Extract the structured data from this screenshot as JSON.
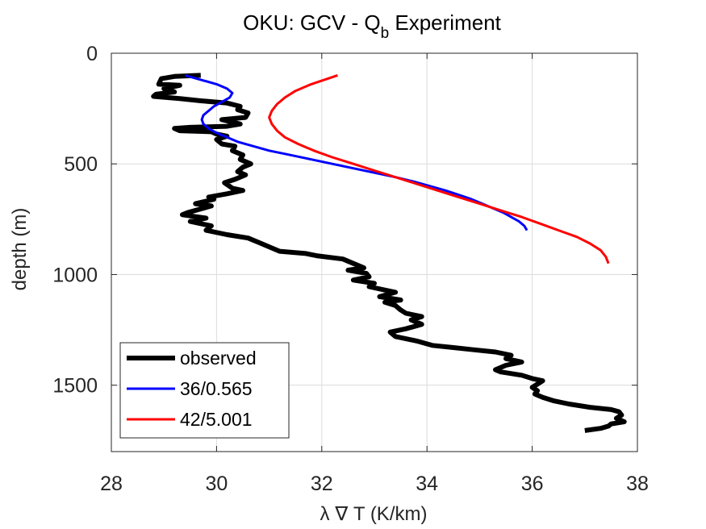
{
  "chart_data": {
    "type": "line",
    "title_main": "OKU: GCV - Q",
    "title_sub": "b",
    "title_end": " Experiment",
    "xlabel": "λ ∇ T (K/km)",
    "ylabel": "depth (m)",
    "xlim": [
      28,
      38
    ],
    "ylim": [
      0,
      1800
    ],
    "y_reversed": true,
    "grid": true,
    "legend_position": "bottom-left",
    "x_ticks": [
      "28",
      "30",
      "32",
      "34",
      "36",
      "38"
    ],
    "y_ticks": [
      "0",
      "500",
      "1000",
      "1500"
    ],
    "series": [
      {
        "name": "observed",
        "color": "#000000",
        "points": [
          [
            29.7,
            100
          ],
          [
            29.2,
            105
          ],
          [
            28.95,
            115
          ],
          [
            28.9,
            140
          ],
          [
            29.3,
            145
          ],
          [
            29.0,
            160
          ],
          [
            29.2,
            175
          ],
          [
            28.85,
            185
          ],
          [
            28.8,
            195
          ],
          [
            29.3,
            205
          ],
          [
            29.7,
            215
          ],
          [
            30.2,
            225
          ],
          [
            30.45,
            240
          ],
          [
            30.4,
            255
          ],
          [
            30.6,
            270
          ],
          [
            30.55,
            290
          ],
          [
            30.1,
            300
          ],
          [
            30.45,
            320
          ],
          [
            30.2,
            330
          ],
          [
            29.5,
            335
          ],
          [
            29.2,
            340
          ],
          [
            29.3,
            350
          ],
          [
            29.9,
            355
          ],
          [
            30.0,
            365
          ],
          [
            30.2,
            375
          ],
          [
            30.0,
            390
          ],
          [
            30.1,
            410
          ],
          [
            30.35,
            420
          ],
          [
            30.3,
            440
          ],
          [
            30.5,
            460
          ],
          [
            30.45,
            480
          ],
          [
            30.65,
            500
          ],
          [
            30.5,
            515
          ],
          [
            30.4,
            535
          ],
          [
            30.55,
            550
          ],
          [
            30.35,
            570
          ],
          [
            30.15,
            585
          ],
          [
            30.3,
            610
          ],
          [
            30.5,
            620
          ],
          [
            30.2,
            635
          ],
          [
            29.85,
            650
          ],
          [
            29.95,
            660
          ],
          [
            29.6,
            680
          ],
          [
            29.9,
            690
          ],
          [
            29.45,
            720
          ],
          [
            29.35,
            730
          ],
          [
            29.8,
            745
          ],
          [
            29.5,
            760
          ],
          [
            29.9,
            780
          ],
          [
            29.8,
            800
          ],
          [
            30.2,
            820
          ],
          [
            30.6,
            835
          ],
          [
            30.8,
            855
          ],
          [
            31.0,
            875
          ],
          [
            31.2,
            895
          ],
          [
            31.7,
            905
          ],
          [
            31.9,
            915
          ],
          [
            32.4,
            930
          ],
          [
            32.6,
            950
          ],
          [
            32.8,
            970
          ],
          [
            32.5,
            980
          ],
          [
            32.85,
            995
          ],
          [
            32.9,
            1010
          ],
          [
            32.6,
            1025
          ],
          [
            33.0,
            1040
          ],
          [
            32.9,
            1055
          ],
          [
            33.2,
            1070
          ],
          [
            33.4,
            1080
          ],
          [
            33.1,
            1100
          ],
          [
            33.5,
            1115
          ],
          [
            33.2,
            1125
          ],
          [
            33.4,
            1140
          ],
          [
            33.5,
            1160
          ],
          [
            33.6,
            1175
          ],
          [
            33.9,
            1190
          ],
          [
            33.7,
            1205
          ],
          [
            33.9,
            1225
          ],
          [
            33.6,
            1245
          ],
          [
            33.3,
            1260
          ],
          [
            33.4,
            1280
          ],
          [
            33.8,
            1300
          ],
          [
            34.1,
            1320
          ],
          [
            34.5,
            1330
          ],
          [
            34.9,
            1340
          ],
          [
            35.3,
            1350
          ],
          [
            35.6,
            1365
          ],
          [
            35.5,
            1380
          ],
          [
            35.8,
            1395
          ],
          [
            35.5,
            1410
          ],
          [
            35.3,
            1430
          ],
          [
            35.4,
            1440
          ],
          [
            35.8,
            1455
          ],
          [
            36.0,
            1470
          ],
          [
            36.2,
            1480
          ],
          [
            36.1,
            1495
          ],
          [
            36.0,
            1510
          ],
          [
            36.1,
            1525
          ],
          [
            36.05,
            1540
          ],
          [
            36.2,
            1555
          ],
          [
            36.4,
            1570
          ],
          [
            36.7,
            1585
          ],
          [
            37.1,
            1600
          ],
          [
            37.5,
            1610
          ],
          [
            37.65,
            1620
          ],
          [
            37.7,
            1635
          ],
          [
            37.6,
            1650
          ],
          [
            37.75,
            1665
          ],
          [
            37.5,
            1675
          ],
          [
            37.45,
            1685
          ],
          [
            37.3,
            1695
          ],
          [
            37.0,
            1705
          ]
        ]
      },
      {
        "name": "36/0.565",
        "color": "#0000ff",
        "points": [
          [
            29.4,
            100
          ],
          [
            29.7,
            120
          ],
          [
            30.0,
            140
          ],
          [
            30.2,
            160
          ],
          [
            30.3,
            180
          ],
          [
            30.25,
            200
          ],
          [
            30.1,
            220
          ],
          [
            29.95,
            240
          ],
          [
            29.85,
            260
          ],
          [
            29.75,
            280
          ],
          [
            29.72,
            300
          ],
          [
            29.75,
            320
          ],
          [
            29.85,
            340
          ],
          [
            30.0,
            360
          ],
          [
            30.2,
            380
          ],
          [
            30.4,
            400
          ],
          [
            30.7,
            420
          ],
          [
            31.0,
            440
          ],
          [
            31.4,
            460
          ],
          [
            31.8,
            480
          ],
          [
            32.2,
            500
          ],
          [
            32.6,
            520
          ],
          [
            33.0,
            540
          ],
          [
            33.4,
            560
          ],
          [
            33.75,
            580
          ],
          [
            34.05,
            600
          ],
          [
            34.35,
            620
          ],
          [
            34.6,
            640
          ],
          [
            34.85,
            660
          ],
          [
            35.05,
            680
          ],
          [
            35.25,
            700
          ],
          [
            35.45,
            720
          ],
          [
            35.6,
            740
          ],
          [
            35.75,
            760
          ],
          [
            35.85,
            780
          ],
          [
            35.9,
            800
          ]
        ]
      },
      {
        "name": "42/5.001",
        "color": "#ff0000",
        "points": [
          [
            32.3,
            100
          ],
          [
            31.8,
            140
          ],
          [
            31.5,
            170
          ],
          [
            31.3,
            200
          ],
          [
            31.15,
            230
          ],
          [
            31.05,
            260
          ],
          [
            31.0,
            290
          ],
          [
            31.05,
            320
          ],
          [
            31.15,
            350
          ],
          [
            31.3,
            380
          ],
          [
            31.55,
            410
          ],
          [
            31.85,
            440
          ],
          [
            32.2,
            470
          ],
          [
            32.6,
            500
          ],
          [
            33.0,
            530
          ],
          [
            33.4,
            560
          ],
          [
            33.8,
            590
          ],
          [
            34.2,
            620
          ],
          [
            34.6,
            650
          ],
          [
            35.0,
            680
          ],
          [
            35.4,
            710
          ],
          [
            35.8,
            740
          ],
          [
            36.15,
            770
          ],
          [
            36.5,
            800
          ],
          [
            36.85,
            830
          ],
          [
            37.1,
            860
          ],
          [
            37.3,
            890
          ],
          [
            37.4,
            920
          ],
          [
            37.45,
            950
          ]
        ]
      }
    ]
  }
}
